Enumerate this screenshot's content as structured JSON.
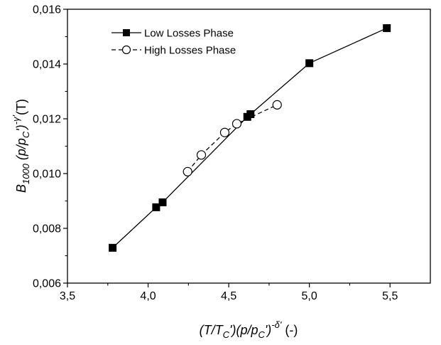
{
  "chart_data": {
    "type": "line",
    "xlim": [
      3.5,
      5.75
    ],
    "ylim": [
      0.006,
      0.016
    ],
    "x_ticks": [
      3.5,
      4.0,
      4.5,
      5.0,
      5.5
    ],
    "y_ticks": [
      0.006,
      0.008,
      0.01,
      0.012,
      0.014,
      0.016
    ],
    "x_tick_labels": [
      "3,5",
      "4,0",
      "4,5",
      "5,0",
      "5,5"
    ],
    "y_tick_labels": [
      "0,006",
      "0,008",
      "0,010",
      "0,012",
      "0,014",
      "0,016"
    ],
    "xlabel": {
      "p1": "(T/T",
      "s1": "C",
      "p2": "')(p/p",
      "s2": "C",
      "p3": "')",
      "sup": "-δ'",
      "p4": " (-)"
    },
    "ylabel": {
      "p1": "B",
      "s1": "1000",
      "p2": " (p/p",
      "s2": "C",
      "p3": "')",
      "sup": "-γ'",
      "p4": "(T)"
    },
    "legend_position": "top-left",
    "grid": false,
    "series": [
      {
        "name": "Low Losses Phase",
        "marker": "filled-square",
        "line": "solid",
        "color": "#000000",
        "x": [
          3.78,
          4.05,
          4.09,
          4.615,
          4.635,
          5.0,
          5.48
        ],
        "y": [
          0.00729,
          0.00877,
          0.00895,
          0.01207,
          0.01217,
          0.01403,
          0.01531
        ]
      },
      {
        "name": "High Losses Phase",
        "marker": "open-circle",
        "line": "dashed",
        "color": "#000000",
        "x": [
          4.245,
          4.33,
          4.475,
          4.55,
          4.8
        ],
        "y": [
          0.01007,
          0.01068,
          0.0115,
          0.01182,
          0.01251
        ]
      }
    ]
  }
}
